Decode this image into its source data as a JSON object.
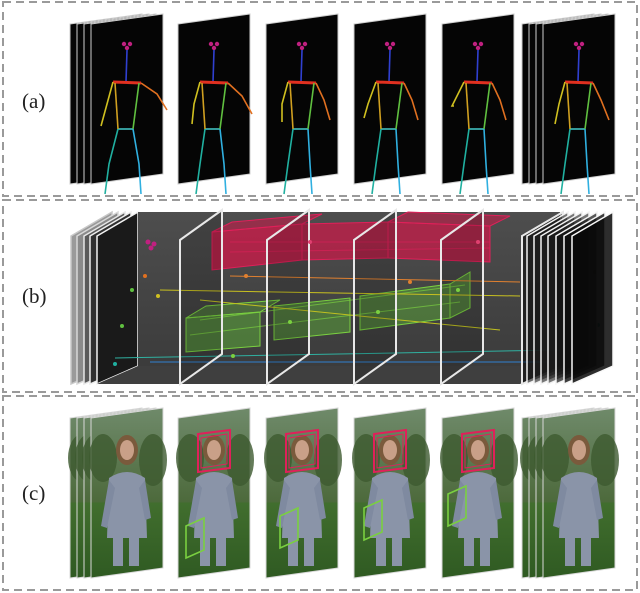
{
  "panels": [
    {
      "label": "(a)",
      "content": "skeleton-pose-frames"
    },
    {
      "label": "(b)",
      "content": "spatio-temporal-tube-volume"
    },
    {
      "label": "(c)",
      "content": "video-frames-with-boxes"
    }
  ],
  "colors": {
    "border_dash": "#9a9a9a",
    "frame_dark": "#050505",
    "tube_face": "#e0205a",
    "tube_hand": "#7ad040",
    "skeleton_head": "#c02080",
    "skeleton_torso": "#e03020",
    "skeleton_spine": "#3040d0",
    "skeleton_leg_left": "#20b0a0",
    "skeleton_leg_right": "#60c040",
    "skeleton_arm_left": "#d0c020",
    "skeleton_arm_right": "#e07020",
    "grass": "#3f6a2a",
    "sweater": "#8a94a8",
    "hair": "#7a5a3c",
    "skin": "#c9a088"
  },
  "icons": [
    "skeleton-figure",
    "girl-photo",
    "face-box",
    "hand-box"
  ]
}
